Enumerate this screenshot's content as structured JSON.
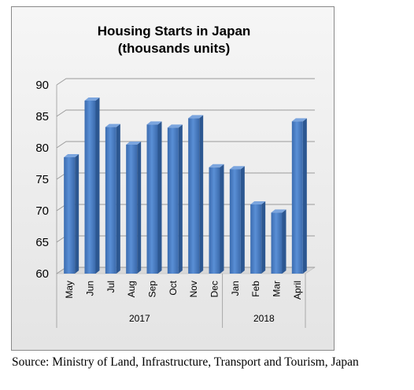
{
  "chart_data": {
    "type": "bar",
    "title_lines": [
      "Housing Starts in Japan",
      "(thousands units)"
    ],
    "categories": [
      "May",
      "Jun",
      "Jul",
      "Aug",
      "Sep",
      "Oct",
      "Nov",
      "Dec",
      "Jan",
      "Feb",
      "Mar",
      "April"
    ],
    "values": [
      78.5,
      87.5,
      83.3,
      80.5,
      83.7,
      83.2,
      84.7,
      76.9,
      76.6,
      71.0,
      69.7,
      84.2
    ],
    "groups": [
      {
        "label": "2017",
        "start": 0,
        "end": 7
      },
      {
        "label": "2018",
        "start": 8,
        "end": 11
      }
    ],
    "yticks": [
      "60",
      "65",
      "70",
      "75",
      "80",
      "85",
      "90"
    ],
    "ylim": [
      60,
      90
    ],
    "grid": true,
    "bar_color": "#4a7ec2"
  },
  "source_note": "Source: Ministry of Land, Infrastructure, Transport and Tourism, Japan"
}
